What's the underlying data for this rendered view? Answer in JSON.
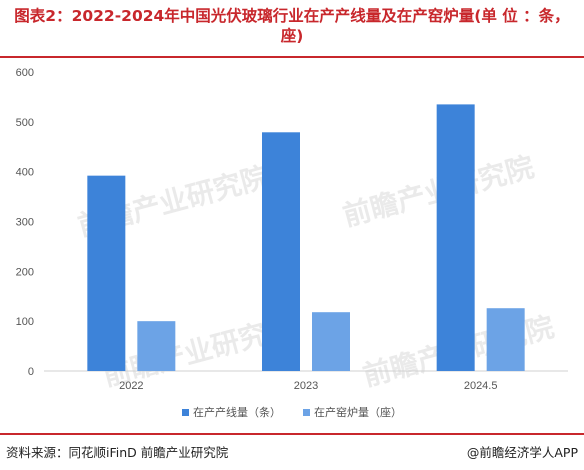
{
  "title": "图表2：2022-2024年中国光伏玻璃行业在产产线量及在产窑炉量(单 位 ：条，座)",
  "source": "资料来源：同花顺iFinD 前瞻产业研究院",
  "brand": "@前瞻经济学人APP",
  "watermark": "前瞻产业研究院",
  "colors": {
    "title": "#c8272c",
    "series1": "#3d83d9",
    "series2": "#6ca3e6"
  },
  "chart_data": {
    "type": "bar",
    "categories": [
      "2022",
      "2023",
      "2024.5"
    ],
    "series": [
      {
        "name": "在产产线量（条）",
        "values": [
          392,
          479,
          535
        ]
      },
      {
        "name": "在产窑炉量（座）",
        "values": [
          100,
          118,
          126
        ]
      }
    ],
    "y_ticks": [
      "0",
      "100",
      "200",
      "300",
      "400",
      "500",
      "600"
    ],
    "ylim": [
      0,
      600
    ],
    "grid": false,
    "legend": "bottom"
  }
}
